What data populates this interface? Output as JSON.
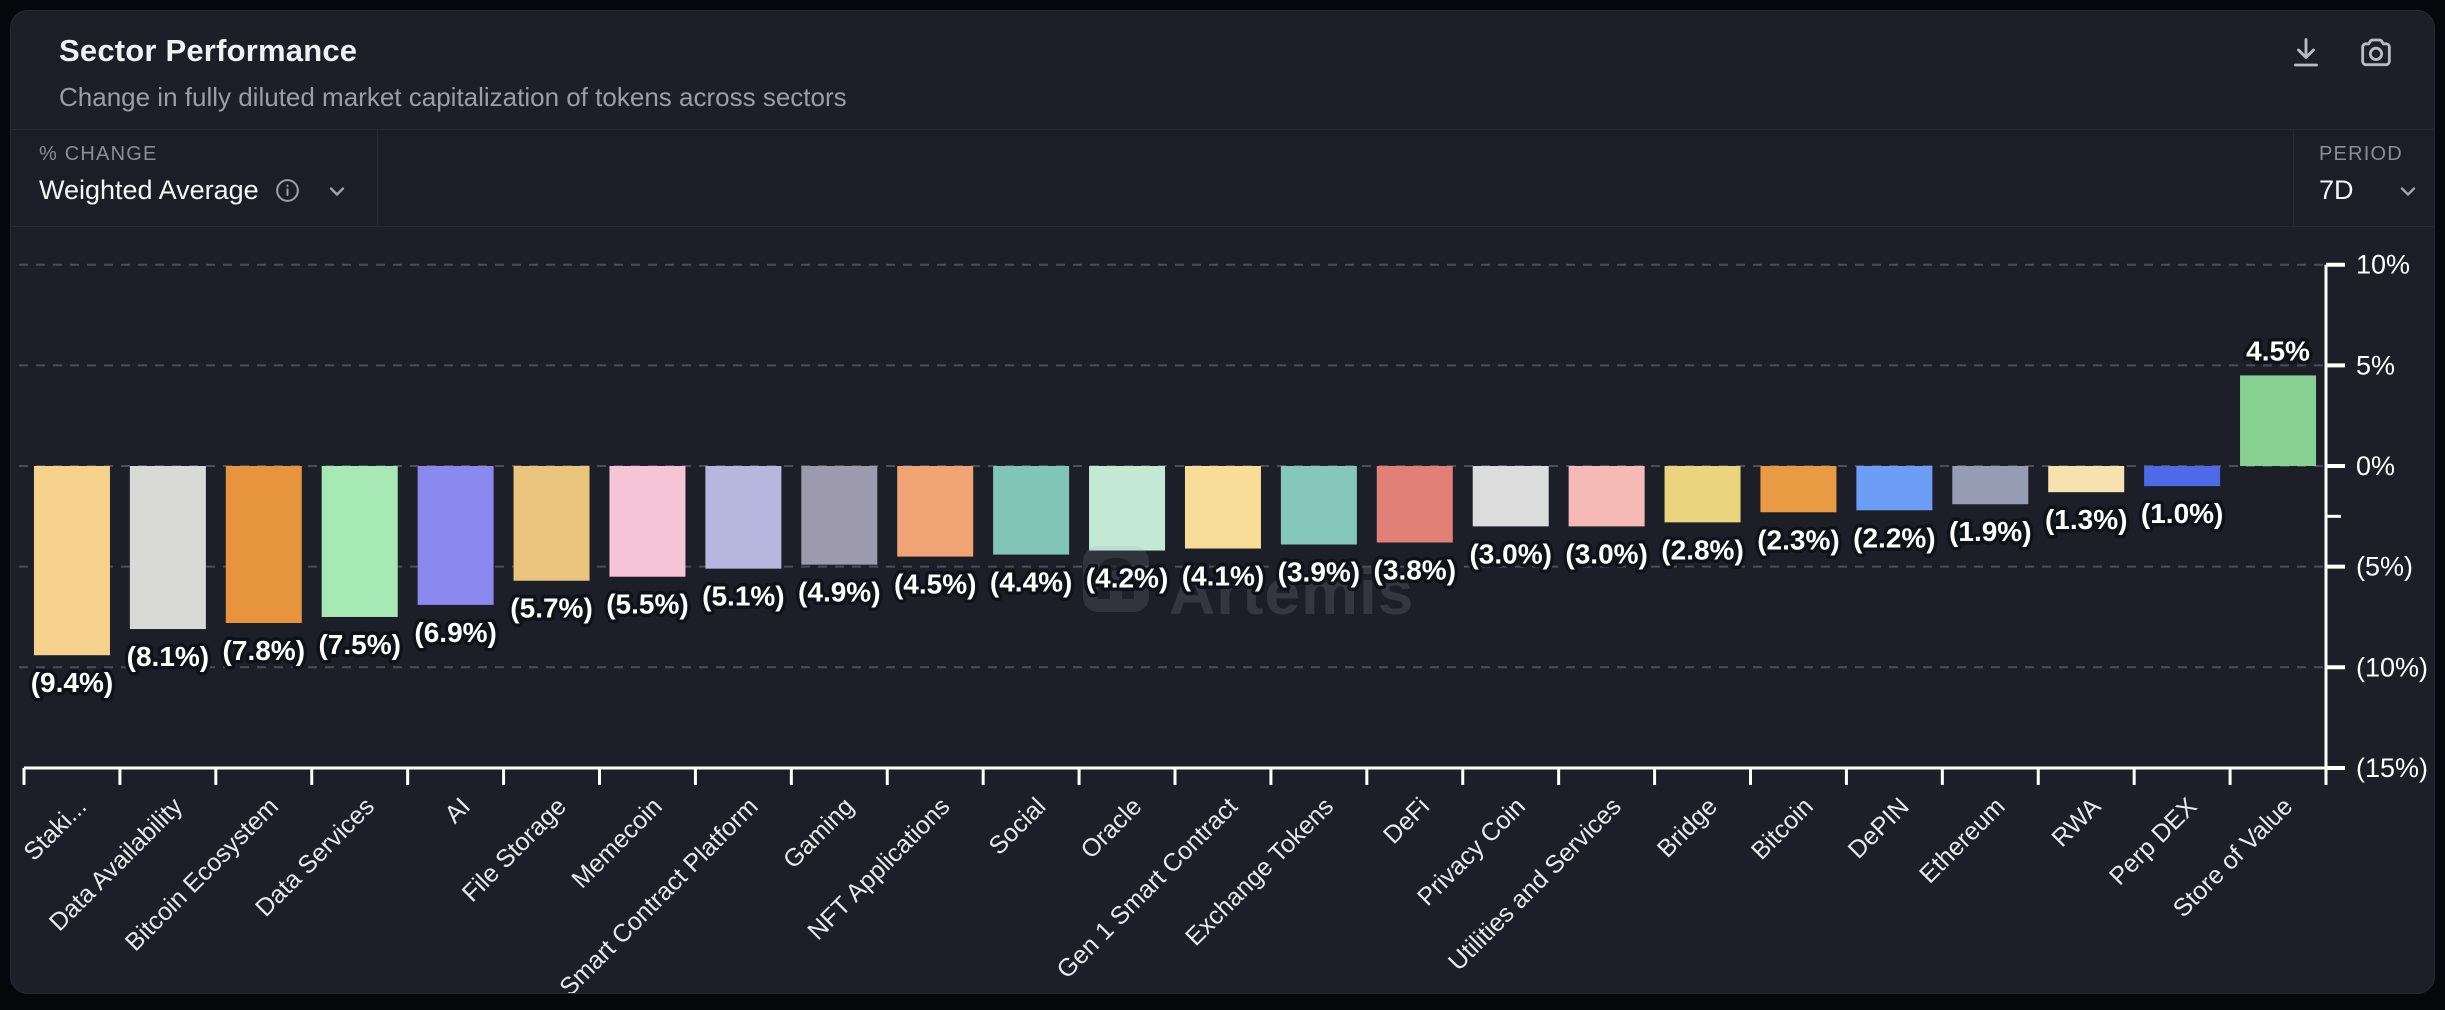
{
  "header": {
    "title": "Sector Performance",
    "subtitle": "Change in fully diluted market capitalization of tokens across sectors"
  },
  "toolbar": {
    "icons": [
      "download-icon",
      "camera-icon"
    ]
  },
  "controls": {
    "metric_label": "% CHANGE",
    "metric_value": "Weighted Average",
    "metric_icons": [
      "info-icon",
      "chevron-down-icon"
    ],
    "period_label": "PERIOD",
    "period_value": "7D",
    "period_icon": "chevron-down-icon"
  },
  "watermark": {
    "text": "Artemis"
  },
  "theme": {
    "page_bg": "#06070a",
    "card_bg": "#1c1f27",
    "border": "#262a33",
    "title": "#f0f1f4",
    "subtitle": "#9a9ea7",
    "muted_label": "#8a8e97",
    "control_value": "#f4f5f7",
    "axis": "#ffffff",
    "grid": "#4a4e58",
    "bar_value_label": "#ffffff",
    "bar_value_outline": "#101219",
    "category_label": "#e8e9ec",
    "watermark_color": "rgba(152,156,166,0.20)",
    "watermark_badge": "rgba(160,164,174,0.16)",
    "watermark_glyph": "rgba(16,18,24,0.55)"
  },
  "chart_data": {
    "type": "bar",
    "title": "Sector Performance",
    "xlabel": "",
    "ylabel": "% change",
    "ylim": [
      -15,
      10
    ],
    "grid": "dashed-horizontal",
    "categories": [
      "Staki...",
      "Data Availability",
      "Bitcoin Ecosystem",
      "Data Services",
      "AI",
      "File Storage",
      "Memecoin",
      "Smart Contract Platform",
      "Gaming",
      "NFT Applications",
      "Social",
      "Oracle",
      "Gen 1 Smart Contract",
      "Exchange Tokens",
      "DeFi",
      "Privacy Coin",
      "Utilities and Services",
      "Bridge",
      "Bitcoin",
      "DePIN",
      "Ethereum",
      "RWA",
      "Perp DEX",
      "Store of Value"
    ],
    "values": [
      -9.4,
      -8.1,
      -7.8,
      -7.5,
      -6.9,
      -5.7,
      -5.5,
      -5.1,
      -4.9,
      -4.5,
      -4.4,
      -4.2,
      -4.1,
      -3.9,
      -3.8,
      -3.0,
      -3.0,
      -2.8,
      -2.3,
      -2.2,
      -1.9,
      -1.3,
      -1.0,
      4.5
    ],
    "value_labels": [
      "(9.4%)",
      "(8.1%)",
      "(7.8%)",
      "(7.5%)",
      "(6.9%)",
      "(5.7%)",
      "(5.5%)",
      "(5.1%)",
      "(4.9%)",
      "(4.5%)",
      "(4.4%)",
      "(4.2%)",
      "(4.1%)",
      "(3.9%)",
      "(3.8%)",
      "(3.0%)",
      "(3.0%)",
      "(2.8%)",
      "(2.3%)",
      "(2.2%)",
      "(1.9%)",
      "(1.3%)",
      "(1.0%)",
      "4.5%"
    ],
    "colors": [
      "#F6D18C",
      "#D9D9D7",
      "#E6953E",
      "#A6E9B4",
      "#8B88F0",
      "#E9C47C",
      "#F5C4D6",
      "#B5B7DF",
      "#9D9AAD",
      "#F0A475",
      "#80C5B6",
      "#C3E8D4",
      "#F8DD98",
      "#85C8BB",
      "#E18077",
      "#DCDCDC",
      "#F5BAB6",
      "#EAD47E",
      "#E99B44",
      "#6C9EF6",
      "#969CB4",
      "#F7E1AC",
      "#4D6BE9",
      "#89D192"
    ],
    "yticks": {
      "values": [
        10,
        5,
        0,
        -5,
        -10,
        -15
      ],
      "labels": [
        "10%",
        "5%",
        "0%",
        "(5%)",
        "(10%)",
        "(15%)"
      ]
    },
    "minor_yticks": [
      -2.5
    ],
    "grid_values": [
      10,
      5,
      0,
      -5,
      -10
    ],
    "legend_position": "none"
  }
}
